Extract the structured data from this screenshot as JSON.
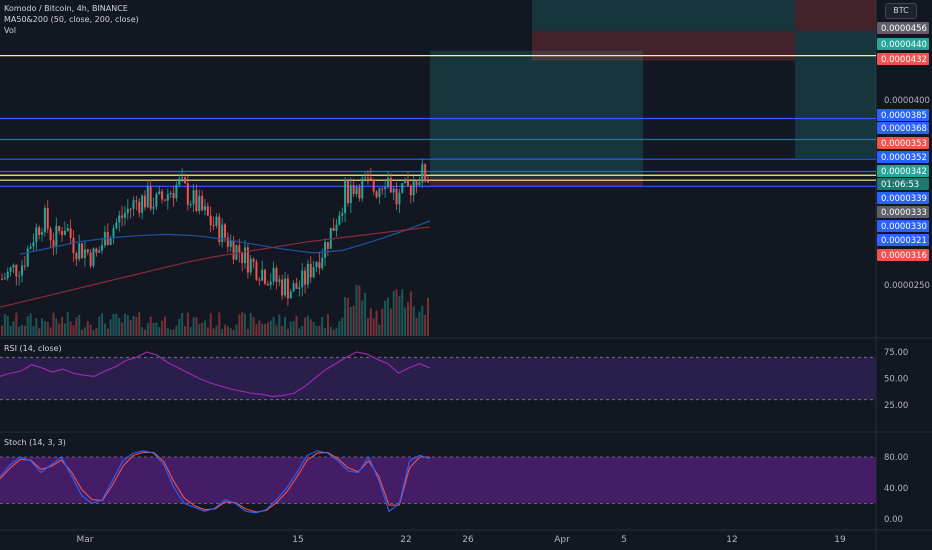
{
  "header": {
    "symbol_line": "Komodo / Bitcoin, 4h, BINANCE",
    "ma_line": "MA50&200 (50, close, 200, close)",
    "vol_line": "Vol",
    "currency_badge": "BTC"
  },
  "rsi_panel": {
    "title": "RSI (14, close)"
  },
  "stoch_panel": {
    "title": "Stoch (14, 3, 3)"
  },
  "colors": {
    "background": "#131722",
    "up": "#26a69a",
    "down": "#ef5350",
    "blue_line": "#2962ff",
    "yellow_line": "#fff176",
    "ma50": "#1e53a0",
    "ma200": "#8b2a3a",
    "rsi_line": "#9c27b0",
    "rsi_band": "#2a1e4a",
    "stoch_k": "#2962ff",
    "stoch_d": "#ef5350",
    "stoch_band": "#4a1e6e"
  },
  "chart_data": [
    {
      "type": "candlestick",
      "title": "Komodo / Bitcoin, 4h, BINANCE",
      "x_ticks": [
        "Mar",
        "15",
        "22",
        "26",
        "Apr",
        "5",
        "12",
        "19"
      ],
      "y_ticks": [
        "0.0000400",
        "0.0000250"
      ],
      "price_labels": [
        {
          "value": "0.0000456",
          "kind": "gray"
        },
        {
          "value": "0.0000440",
          "kind": "green"
        },
        {
          "value": "0.0000432",
          "kind": "red"
        },
        {
          "value": "0.0000385",
          "kind": "blue"
        },
        {
          "value": "0.0000368",
          "kind": "blue"
        },
        {
          "value": "0.0000353",
          "kind": "red"
        },
        {
          "value": "0.0000352",
          "kind": "blue"
        },
        {
          "value": "0.0000342",
          "kind": "green"
        },
        {
          "value": "01:06:53",
          "kind": "green-dark"
        },
        {
          "value": "0.0000339",
          "kind": "blue"
        },
        {
          "value": "0.0000333",
          "kind": "gray"
        },
        {
          "value": "0.0000330",
          "kind": "blue"
        },
        {
          "value": "0.0000321",
          "kind": "blue"
        },
        {
          "value": "0.0000316",
          "kind": "red"
        }
      ],
      "horizontal_lines": [
        {
          "value": 4.36e-05,
          "color": "yellow"
        },
        {
          "value": 3.85e-05,
          "color": "blue"
        },
        {
          "value": 3.68e-05,
          "color": "blue"
        },
        {
          "value": 3.52e-05,
          "color": "blue"
        },
        {
          "value": 3.42e-05,
          "color": "blue"
        },
        {
          "value": 3.35e-05,
          "color": "yellow"
        },
        {
          "value": 3.39e-05,
          "color": "yellow"
        },
        {
          "value": 3.3e-05,
          "color": "blue"
        }
      ],
      "position_boxes": [
        {
          "side": "long",
          "entry": 3.37e-05,
          "target": 4.4e-05,
          "stop": 3.3e-05,
          "start_date": "Mar 23",
          "end_date": "Apr 4"
        },
        {
          "side": "long",
          "entry": 4.56e-05,
          "target": 5e-05,
          "stop": 4.32e-05,
          "start_date": "Mar 29",
          "end_date": "Apr 9"
        },
        {
          "side": "short",
          "entry": 4.56e-05,
          "target": 5e-05,
          "stop": 4.32e-05,
          "start_date": "Apr 9",
          "end_date": "Apr 16"
        },
        {
          "side": "short",
          "entry": 4.56e-05,
          "target": 3.53e-05,
          "stop": 5e-05,
          "start_date": "Apr 16",
          "end_date": "Apr 20"
        }
      ],
      "ohlc_close_path": [
        2.55e-05,
        2.62e-05,
        2.68e-05,
        2.9e-05,
        3.05e-05,
        2.85e-05,
        3e-05,
        2.82e-05,
        2.78e-05,
        2.72e-05,
        2.9e-05,
        3e-05,
        3.1e-05,
        3.18e-05,
        3.2e-05,
        3.16e-05,
        3.25e-05,
        3.32e-05,
        3.22e-05,
        3.12e-05,
        3.02e-05,
        2.94e-05,
        2.84e-05,
        2.76e-05,
        2.68e-05,
        2.62e-05,
        2.56e-05,
        2.5e-05,
        2.46e-05,
        2.52e-05,
        2.68e-05,
        2.8e-05,
        3e-05,
        3.25e-05,
        3.32e-05,
        3.3e-05,
        3.28e-05,
        3.4e-05,
        3.18e-05,
        3.26e-05,
        3.4e-05,
        3.38e-05
      ],
      "ma50_path": [
        2.75e-05,
        2.8e-05,
        2.85e-05,
        2.88e-05,
        2.9e-05,
        2.91e-05,
        2.9e-05,
        2.87e-05,
        2.83e-05,
        2.79e-05,
        2.76e-05,
        2.78e-05,
        2.85e-05,
        2.93e-05,
        3.02e-05
      ],
      "ma200_path": [
        2.32e-05,
        2.38e-05,
        2.44e-05,
        2.5e-05,
        2.56e-05,
        2.62e-05,
        2.68e-05,
        2.73e-05,
        2.77e-05,
        2.81e-05,
        2.85e-05,
        2.88e-05,
        2.91e-05,
        2.94e-05,
        2.97e-05
      ]
    },
    {
      "type": "line",
      "title": "RSI (14, close)",
      "y_ticks": [
        "75.00",
        "50.00",
        "25.00"
      ],
      "ylim": [
        15,
        85
      ],
      "bands": [
        30,
        70
      ],
      "values": [
        52,
        55,
        57,
        63,
        60,
        56,
        59,
        55,
        53,
        52,
        57,
        61,
        67,
        70,
        75,
        72,
        65,
        60,
        55,
        50,
        46,
        43,
        40,
        38,
        36,
        35,
        33,
        34,
        36,
        42,
        50,
        58,
        64,
        70,
        75,
        73,
        68,
        64,
        55,
        60,
        64,
        60
      ]
    },
    {
      "type": "line",
      "title": "Stoch (14, 3, 3)",
      "y_ticks": [
        "80.00",
        "40.00",
        "0.00"
      ],
      "ylim": [
        -8,
        100
      ],
      "bands": [
        20,
        80
      ],
      "series": [
        {
          "values": [
            55,
            70,
            80,
            75,
            60,
            70,
            80,
            55,
            30,
            20,
            25,
            50,
            75,
            85,
            88,
            85,
            70,
            40,
            20,
            15,
            10,
            14,
            25,
            20,
            10,
            8,
            12,
            25,
            40,
            60,
            82,
            88,
            85,
            75,
            62,
            60,
            80,
            50,
            10,
            20,
            75,
            82,
            78
          ]
        },
        {
          "values": [
            52,
            66,
            77,
            76,
            64,
            68,
            76,
            60,
            38,
            25,
            24,
            44,
            68,
            82,
            86,
            86,
            74,
            48,
            27,
            17,
            12,
            13,
            22,
            21,
            13,
            9,
            11,
            21,
            35,
            54,
            76,
            85,
            86,
            78,
            66,
            61,
            75,
            55,
            18,
            18,
            66,
            80,
            80
          ]
        }
      ]
    }
  ]
}
